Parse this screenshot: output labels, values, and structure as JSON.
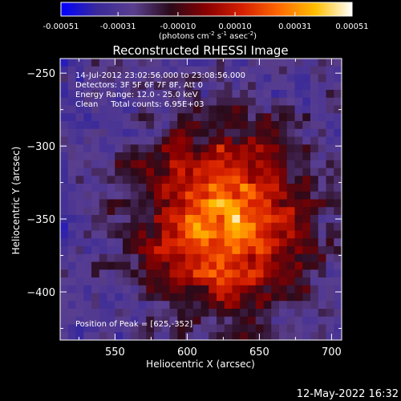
{
  "chart_data": {
    "type": "heatmap",
    "title": "Reconstructed RHESSI Image",
    "xlabel": "Heliocentric X (arcsec)",
    "ylabel": "Heliocentric Y (arcsec)",
    "xlim": [
      512,
      707
    ],
    "ylim": [
      -433,
      -240
    ],
    "x_ticks": [
      550,
      600,
      650,
      700
    ],
    "y_ticks": [
      -250,
      -300,
      -350,
      -400
    ],
    "colorbar": {
      "range": [
        -0.00051,
        0.00051
      ],
      "ticks": [
        "-0.00051",
        "-0.00031",
        "-0.00010",
        "0.00010",
        "0.00031",
        "0.00051"
      ],
      "label_main": "(photons cm",
      "label_sup1": "-2",
      "label_mid1": " s",
      "label_sup2": "-1",
      "label_mid2": " asec",
      "label_sup3": "-2",
      "label_end": ")",
      "colors": [
        "#0000ff",
        "#3a2a99",
        "#5a3f8f",
        "#2a0a1a",
        "#8a0000",
        "#d62000",
        "#ff6a00",
        "#ffc000",
        "#ffffff"
      ]
    },
    "peak": {
      "x": 625,
      "y": -352
    },
    "info_lines": [
      "14-Jul-2012 23:02:56.000 to 23:08:56.000",
      "Detectors: 3F 5F 6F 7F 8F, Att 0",
      "Energy Range: 12.0 - 25.0 keV",
      "Clean     Total counts: 6.95E+03"
    ],
    "peak_label": "Position of Peak = [625,-352]"
  },
  "footer": {
    "timestamp": "12-May-2022 16:32"
  }
}
